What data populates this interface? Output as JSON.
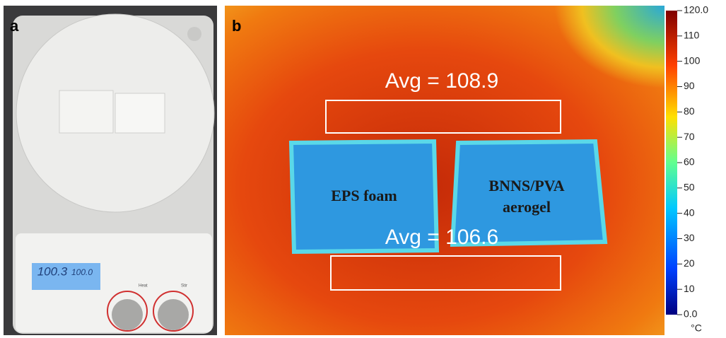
{
  "panel_a": {
    "label": "a",
    "display": {
      "temperature": "100.3",
      "setpoint": "100.0"
    },
    "controls": {
      "heat": "Heat",
      "stir": "Stir"
    }
  },
  "panel_b": {
    "label": "b",
    "regions": [
      {
        "avg": "Avg = 108.9"
      },
      {
        "avg": "Avg = 106.6"
      }
    ],
    "samples": [
      {
        "label": [
          "EPS foam"
        ]
      },
      {
        "label": [
          "BNNS/PVA",
          "aerogel"
        ]
      }
    ],
    "colorbar": {
      "unit": "°C",
      "lim": [
        0,
        120
      ],
      "ticks": [
        {
          "value": 120,
          "label": "120.0"
        },
        110,
        100,
        90,
        80,
        70,
        60,
        50,
        40,
        30,
        20,
        10,
        {
          "value": 0,
          "label": "0.0"
        }
      ]
    }
  }
}
